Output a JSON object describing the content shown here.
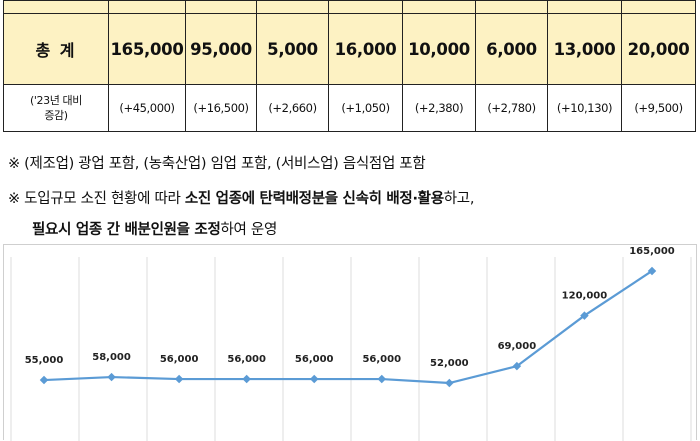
{
  "table": {
    "total_label": "총 계",
    "totals": [
      "165,000",
      "95,000",
      "5,000",
      "16,000",
      "10,000",
      "6,000",
      "13,000",
      "20,000"
    ],
    "diff_label_line1": "('23년 대비",
    "diff_label_line2": "증감)",
    "diffs": [
      "(+45,000)",
      "(+16,500)",
      "(+2,660)",
      "(+1,050)",
      "(+2,380)",
      "(+2,780)",
      "(+10,130)",
      "(+9,500)"
    ]
  },
  "notes": {
    "line1": "※ (제조업) 광업 포함, (농축산업) 임업 포함, (서비스업) 음식점업 포함",
    "line2_a": "※ 도입규모 소진 현황에 따라 ",
    "line2_b": "소진 업종에 탄력배정분을 신속히 배정·활용",
    "line2_c": "하고,",
    "line3_a": "필요시 업종 간 배분인원을 조정",
    "line3_b": "하여 운영"
  },
  "chart_data": {
    "type": "line",
    "x": [
      "",
      "",
      "",
      "",
      "",
      "",
      "",
      "",
      "",
      ""
    ],
    "values": [
      55000,
      58000,
      56000,
      56000,
      56000,
      56000,
      52000,
      69000,
      120000,
      165000
    ],
    "labels": [
      "55,000",
      "58,000",
      "56,000",
      "56,000",
      "56,000",
      "56,000",
      "52,000",
      "69,000",
      "120,000",
      "165,000"
    ],
    "line_color": "#5b9bd5",
    "grid": "vertical"
  }
}
